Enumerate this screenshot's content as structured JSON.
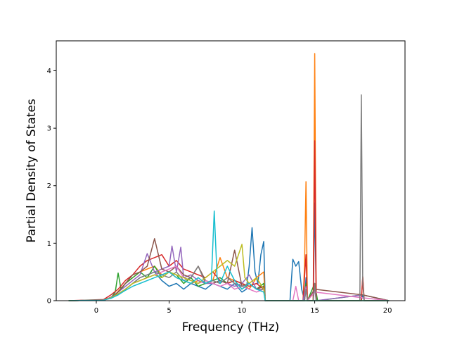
{
  "chart_data": {
    "type": "line",
    "xlabel": "Frequency (THz)",
    "ylabel": "Partial Density of States",
    "xlim": [
      -2.75,
      21.2
    ],
    "ylim": [
      0,
      4.52
    ],
    "x_ticks": [
      0,
      5,
      10,
      15,
      20
    ],
    "x_tick_labels": [
      "0",
      "5",
      "10",
      "15",
      "20"
    ],
    "y_ticks": [
      0,
      1,
      2,
      3,
      4
    ],
    "y_tick_labels": [
      "0",
      "1",
      "2",
      "3",
      "4"
    ],
    "grid": false,
    "legend": "none",
    "colors": [
      "#1f77b4",
      "#ff7f0e",
      "#2ca02c",
      "#d62728",
      "#9467bd",
      "#8c564b",
      "#e377c2",
      "#7f7f7f",
      "#bcbd22",
      "#17becf"
    ],
    "series": [
      {
        "color": "#1f77b4",
        "x": [
          -1.9,
          0.5,
          1.0,
          1.5,
          2.0,
          2.5,
          3.0,
          3.5,
          4.0,
          4.5,
          5.0,
          5.5,
          6.0,
          6.5,
          7.0,
          7.5,
          8.0,
          8.5,
          9.0,
          9.5,
          10.0,
          10.3,
          10.5,
          10.7,
          10.9,
          11.1,
          11.3,
          11.5,
          11.6,
          13.3,
          13.5,
          13.7,
          13.9,
          14.1,
          14.3,
          14.4,
          14.5,
          14.9,
          15.0,
          15.1,
          15.2,
          18.2,
          18.3,
          18.4,
          20.1
        ],
        "y": [
          0,
          0.01,
          0.05,
          0.12,
          0.2,
          0.3,
          0.4,
          0.45,
          0.5,
          0.35,
          0.25,
          0.3,
          0.2,
          0.3,
          0.25,
          0.2,
          0.3,
          0.25,
          0.2,
          0.3,
          0.15,
          0.2,
          0.6,
          1.27,
          0.5,
          0.3,
          0.8,
          1.03,
          0.0,
          0.0,
          0.72,
          0.6,
          0.68,
          0.2,
          0.0,
          0.4,
          0.0,
          0.0,
          1.7,
          0.1,
          0.0,
          0.0,
          0.1,
          0.0,
          0
        ]
      },
      {
        "color": "#ff7f0e",
        "x": [
          -1.9,
          0.5,
          1.2,
          2.0,
          2.5,
          3.0,
          3.5,
          4.0,
          4.5,
          5.0,
          5.5,
          6.0,
          6.5,
          7.0,
          7.5,
          8.0,
          8.5,
          9.0,
          9.5,
          10.0,
          10.5,
          11.0,
          11.5,
          11.6,
          14.2,
          14.3,
          14.4,
          14.5,
          14.9,
          15.0,
          15.1,
          15.2,
          18.2,
          18.3,
          18.4,
          20.1
        ],
        "y": [
          0,
          0.01,
          0.08,
          0.3,
          0.4,
          0.5,
          0.55,
          0.6,
          0.45,
          0.5,
          0.4,
          0.35,
          0.3,
          0.35,
          0.3,
          0.35,
          0.75,
          0.4,
          0.35,
          0.3,
          0.2,
          0.4,
          0.5,
          0.0,
          0.0,
          0.6,
          2.07,
          0.0,
          0.0,
          4.3,
          0.0,
          0.0,
          0.0,
          0.4,
          0.0,
          0
        ]
      },
      {
        "color": "#2ca02c",
        "x": [
          -1.9,
          0.5,
          1.0,
          1.3,
          1.5,
          1.7,
          2.0,
          2.5,
          3.0,
          3.5,
          4.0,
          4.5,
          5.0,
          5.5,
          6.0,
          6.5,
          7.0,
          7.5,
          8.0,
          8.5,
          9.0,
          9.5,
          10.0,
          10.5,
          11.0,
          11.5,
          11.6,
          14.2,
          14.4,
          14.5,
          15.0,
          15.2,
          18.3,
          20.1
        ],
        "y": [
          0,
          0.01,
          0.05,
          0.15,
          0.48,
          0.2,
          0.3,
          0.4,
          0.5,
          0.4,
          0.6,
          0.4,
          0.5,
          0.45,
          0.3,
          0.4,
          0.25,
          0.3,
          0.35,
          0.4,
          0.3,
          0.35,
          0.2,
          0.3,
          0.2,
          0.3,
          0.0,
          0.0,
          0.3,
          0.0,
          0.3,
          0.0,
          0.1,
          0
        ]
      },
      {
        "color": "#d62728",
        "x": [
          -1.9,
          0.5,
          1.0,
          1.5,
          2.0,
          2.5,
          3.0,
          3.5,
          4.0,
          4.5,
          5.0,
          5.5,
          6.0,
          6.5,
          7.0,
          7.5,
          8.0,
          8.5,
          9.0,
          9.5,
          10.0,
          10.5,
          11.0,
          11.5,
          11.6,
          14.2,
          14.4,
          14.5,
          14.9,
          15.0,
          15.1,
          18.2,
          18.3,
          18.4,
          20.1
        ],
        "y": [
          0,
          0.02,
          0.1,
          0.2,
          0.35,
          0.45,
          0.6,
          0.7,
          0.75,
          0.8,
          0.6,
          0.7,
          0.55,
          0.5,
          0.45,
          0.4,
          0.5,
          0.35,
          0.3,
          0.35,
          0.3,
          0.25,
          0.3,
          0.2,
          0.0,
          0.0,
          0.8,
          0.0,
          0.0,
          2.78,
          0.0,
          0.0,
          0.42,
          0.0,
          0
        ]
      },
      {
        "color": "#9467bd",
        "x": [
          -1.9,
          0.5,
          1.0,
          1.5,
          2.0,
          2.5,
          3.0,
          3.5,
          4.0,
          4.5,
          5.0,
          5.2,
          5.5,
          5.8,
          6.0,
          6.5,
          7.0,
          7.5,
          8.0,
          8.5,
          9.0,
          9.5,
          10.0,
          10.5,
          11.0,
          11.5,
          11.6,
          14.2,
          14.4,
          14.5,
          15.0,
          15.1,
          18.3,
          20.1
        ],
        "y": [
          0,
          0.01,
          0.06,
          0.15,
          0.25,
          0.35,
          0.45,
          0.82,
          0.5,
          0.55,
          0.6,
          0.95,
          0.5,
          0.93,
          0.4,
          0.45,
          0.35,
          0.3,
          0.3,
          0.35,
          0.3,
          0.25,
          0.3,
          0.45,
          0.2,
          0.25,
          0.0,
          0.0,
          0.25,
          0.0,
          0.2,
          0.0,
          0.1,
          0
        ]
      },
      {
        "color": "#8c564b",
        "x": [
          -1.9,
          0.5,
          1.0,
          1.5,
          2.0,
          2.5,
          3.0,
          3.5,
          4.0,
          4.5,
          5.0,
          5.5,
          6.0,
          6.5,
          7.0,
          7.5,
          8.0,
          8.5,
          9.0,
          9.5,
          10.0,
          10.5,
          11.0,
          11.5,
          11.6,
          14.3,
          14.4,
          14.5,
          15.0,
          18.3,
          20.1
        ],
        "y": [
          0,
          0.01,
          0.05,
          0.15,
          0.3,
          0.45,
          0.5,
          0.6,
          1.08,
          0.55,
          0.5,
          0.6,
          0.45,
          0.4,
          0.6,
          0.35,
          0.3,
          0.35,
          0.3,
          0.88,
          0.25,
          0.3,
          0.2,
          0.25,
          0.0,
          0.0,
          0.2,
          0.0,
          0.2,
          0.1,
          0
        ]
      },
      {
        "color": "#e377c2",
        "x": [
          -1.9,
          0.5,
          1.0,
          1.5,
          2.0,
          2.5,
          3.0,
          3.5,
          4.0,
          4.5,
          5.0,
          5.5,
          6.0,
          6.5,
          7.0,
          7.5,
          8.0,
          8.5,
          9.0,
          9.5,
          10.0,
          10.5,
          11.0,
          11.5,
          11.6,
          13.5,
          13.7,
          13.9,
          14.3,
          14.4,
          14.5,
          15.0,
          18.3,
          20.1
        ],
        "y": [
          0,
          0.01,
          0.04,
          0.12,
          0.2,
          0.3,
          0.35,
          0.4,
          0.45,
          0.5,
          0.55,
          0.6,
          0.4,
          0.35,
          0.3,
          0.35,
          0.3,
          0.25,
          0.3,
          0.2,
          0.25,
          0.2,
          0.15,
          0.2,
          0.0,
          0.0,
          0.25,
          0.0,
          0.0,
          0.22,
          0.0,
          0.15,
          0.05,
          0
        ]
      },
      {
        "color": "#7f7f7f",
        "x": [
          -1.9,
          0.5,
          1.0,
          1.5,
          2.0,
          2.5,
          3.0,
          3.5,
          4.0,
          4.5,
          5.0,
          5.5,
          6.0,
          6.5,
          7.0,
          7.5,
          8.0,
          8.5,
          9.0,
          9.5,
          10.0,
          10.5,
          11.0,
          11.5,
          11.6,
          14.3,
          14.4,
          14.5,
          14.9,
          15.0,
          15.1,
          18.1,
          18.2,
          18.3,
          18.4,
          20.1
        ],
        "y": [
          0,
          0.01,
          0.05,
          0.1,
          0.2,
          0.3,
          0.4,
          0.45,
          0.5,
          0.45,
          0.4,
          0.5,
          0.35,
          0.4,
          0.6,
          0.3,
          0.35,
          0.3,
          0.4,
          0.3,
          0.25,
          0.3,
          0.2,
          0.2,
          0.0,
          0.0,
          0.2,
          0.0,
          0.0,
          0.3,
          0.0,
          0.0,
          3.58,
          0.3,
          0.0,
          0
        ]
      },
      {
        "color": "#bcbd22",
        "x": [
          -1.9,
          0.5,
          1.0,
          1.5,
          2.0,
          2.5,
          3.0,
          3.5,
          4.0,
          4.5,
          5.0,
          5.5,
          6.0,
          6.5,
          7.0,
          7.5,
          8.0,
          8.5,
          9.0,
          9.5,
          10.0,
          10.2,
          10.5,
          11.0,
          11.5,
          11.6,
          14.4,
          15.0,
          18.3,
          20.1
        ],
        "y": [
          0,
          0.01,
          0.05,
          0.12,
          0.2,
          0.3,
          0.35,
          0.4,
          0.45,
          0.4,
          0.5,
          0.45,
          0.4,
          0.35,
          0.3,
          0.4,
          0.5,
          0.6,
          0.7,
          0.6,
          0.98,
          0.4,
          0.3,
          0.4,
          0.2,
          0.0,
          0.0,
          0.0,
          0.0,
          0
        ]
      },
      {
        "color": "#17becf",
        "x": [
          -1.9,
          0.5,
          1.0,
          1.5,
          2.0,
          2.5,
          3.0,
          3.5,
          4.0,
          4.5,
          5.0,
          5.5,
          6.0,
          6.5,
          7.0,
          7.5,
          7.9,
          8.1,
          8.3,
          8.5,
          9.0,
          9.5,
          10.0,
          10.5,
          11.0,
          11.5,
          11.6,
          14.4,
          15.0,
          18.3,
          20.1
        ],
        "y": [
          0,
          0.01,
          0.04,
          0.1,
          0.18,
          0.25,
          0.3,
          0.35,
          0.4,
          0.45,
          0.5,
          0.4,
          0.35,
          0.3,
          0.4,
          0.3,
          0.35,
          1.56,
          0.4,
          0.3,
          0.6,
          0.35,
          0.2,
          0.3,
          0.2,
          0.15,
          0.0,
          0.0,
          0.0,
          0.0,
          0
        ]
      }
    ]
  }
}
